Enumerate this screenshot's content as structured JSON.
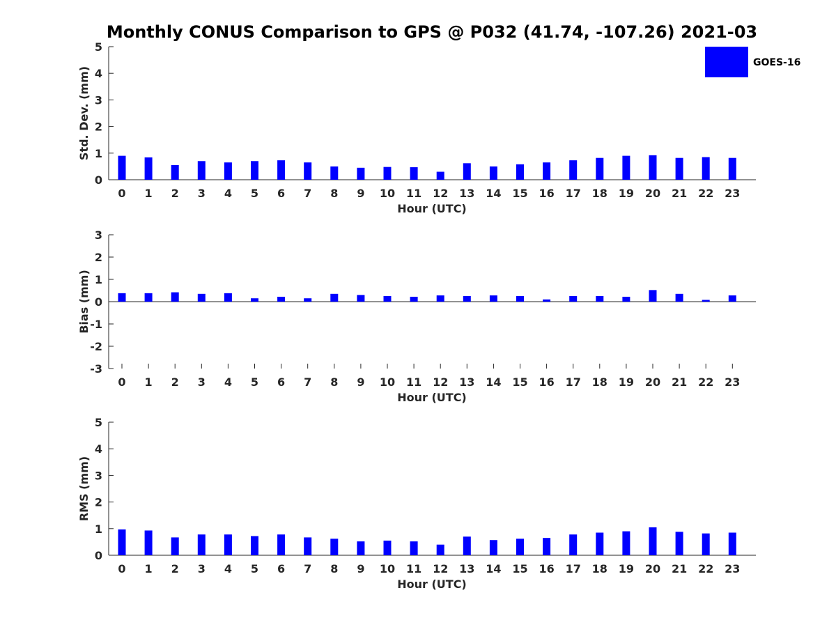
{
  "chart_data": {
    "title": "Monthly CONUS Comparison to GPS @ P032 (41.74, -107.26) 2021-03",
    "legend": {
      "label": "GOES-16",
      "color": "#0000ff",
      "placement": "top-right"
    },
    "hours": [
      "0",
      "1",
      "2",
      "3",
      "4",
      "5",
      "6",
      "7",
      "8",
      "9",
      "10",
      "11",
      "12",
      "13",
      "14",
      "15",
      "16",
      "17",
      "18",
      "19",
      "20",
      "21",
      "22",
      "23"
    ],
    "panels": [
      {
        "type": "bar",
        "xlabel": "Hour (UTC)",
        "ylabel": "Std. Dev. (mm)",
        "ylim": [
          0,
          5
        ],
        "yticks": [
          "0",
          "1",
          "2",
          "3",
          "4",
          "5"
        ],
        "series": [
          {
            "name": "GOES-16",
            "values": [
              0.9,
              0.84,
              0.55,
              0.7,
              0.65,
              0.7,
              0.73,
              0.65,
              0.5,
              0.45,
              0.48,
              0.47,
              0.3,
              0.62,
              0.5,
              0.58,
              0.65,
              0.73,
              0.82,
              0.9,
              0.92,
              0.82,
              0.85,
              0.82
            ]
          }
        ]
      },
      {
        "type": "bar",
        "xlabel": "Hour (UTC)",
        "ylabel": "Bias (mm)",
        "ylim": [
          -3,
          3
        ],
        "yticks": [
          "-3",
          "-2",
          "-1",
          "0",
          "1",
          "2",
          "3"
        ],
        "series": [
          {
            "name": "GOES-16",
            "values": [
              0.38,
              0.38,
              0.42,
              0.35,
              0.38,
              0.15,
              0.22,
              0.15,
              0.35,
              0.3,
              0.25,
              0.22,
              0.28,
              0.25,
              0.28,
              0.25,
              0.1,
              0.25,
              0.25,
              0.22,
              0.52,
              0.35,
              0.08,
              0.28
            ]
          }
        ]
      },
      {
        "type": "bar",
        "xlabel": "Hour (UTC)",
        "ylabel": "RMS (mm)",
        "ylim": [
          0,
          5
        ],
        "yticks": [
          "0",
          "1",
          "2",
          "3",
          "4",
          "5"
        ],
        "series": [
          {
            "name": "GOES-16",
            "values": [
              0.97,
              0.93,
              0.67,
              0.78,
              0.78,
              0.72,
              0.78,
              0.67,
              0.62,
              0.52,
              0.55,
              0.52,
              0.4,
              0.7,
              0.57,
              0.62,
              0.65,
              0.78,
              0.85,
              0.9,
              1.05,
              0.88,
              0.82,
              0.85
            ]
          }
        ]
      }
    ]
  }
}
